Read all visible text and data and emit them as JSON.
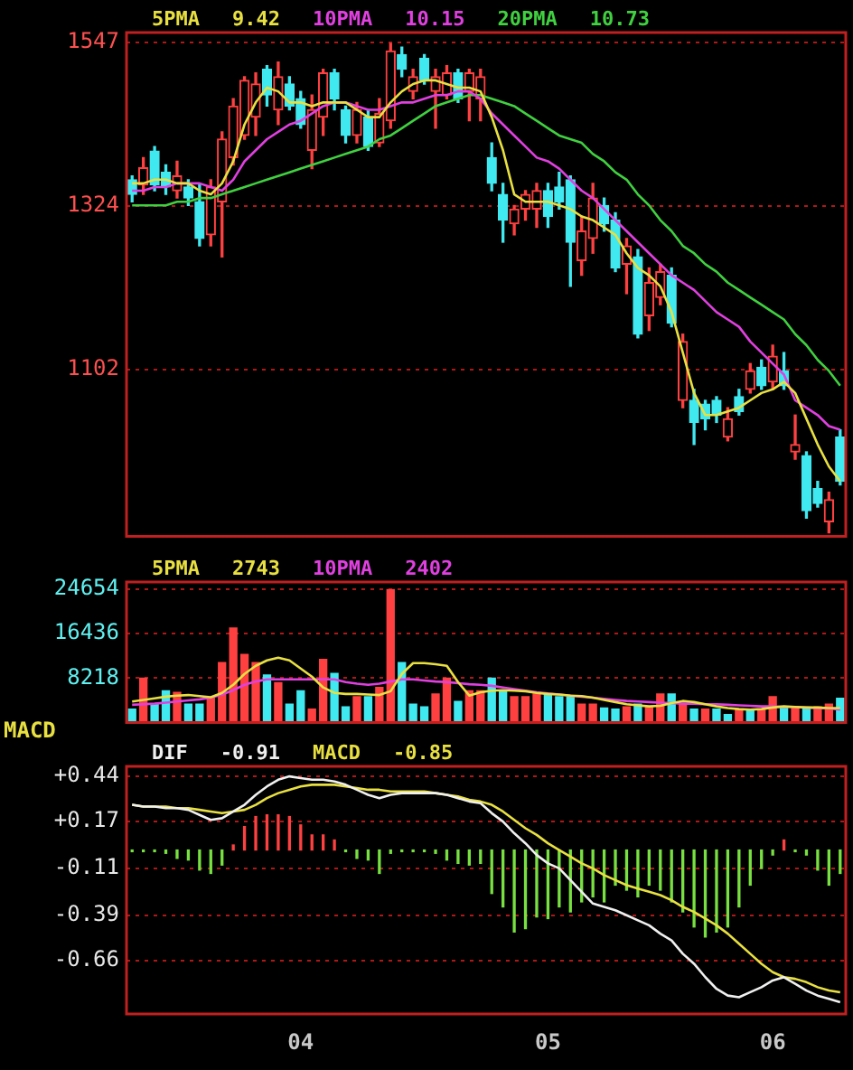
{
  "chart_data": [
    {
      "type": "candlestick",
      "categories": [
        null,
        null,
        null,
        null,
        null,
        null,
        null,
        null,
        null,
        null,
        null,
        null,
        null,
        null,
        null,
        "04",
        null,
        null,
        null,
        null,
        null,
        null,
        null,
        null,
        null,
        null,
        null,
        null,
        null,
        null,
        null,
        null,
        null,
        null,
        null,
        null,
        null,
        "05",
        null,
        null,
        null,
        null,
        null,
        null,
        null,
        null,
        null,
        null,
        null,
        null,
        null,
        null,
        null,
        null,
        null,
        null,
        null,
        "06",
        null,
        null,
        null,
        null,
        null,
        null
      ],
      "ohlc": [
        [
          1360,
          1365,
          1330,
          1340
        ],
        [
          1353,
          1390,
          1340,
          1376
        ],
        [
          1399,
          1405,
          1345,
          1353
        ],
        [
          1370,
          1380,
          1340,
          1350
        ],
        [
          1345,
          1385,
          1335,
          1365
        ],
        [
          1350,
          1360,
          1325,
          1335
        ],
        [
          1330,
          1355,
          1270,
          1280
        ],
        [
          1285,
          1360,
          1270,
          1350
        ],
        [
          1330,
          1425,
          1255,
          1415
        ],
        [
          1390,
          1470,
          1380,
          1460
        ],
        [
          1420,
          1500,
          1415,
          1495
        ],
        [
          1445,
          1505,
          1420,
          1490
        ],
        [
          1510,
          1515,
          1460,
          1475
        ],
        [
          1455,
          1520,
          1435,
          1500
        ],
        [
          1490,
          1500,
          1455,
          1460
        ],
        [
          1470,
          1480,
          1430,
          1435
        ],
        [
          1400,
          1475,
          1375,
          1455
        ],
        [
          1445,
          1510,
          1420,
          1505
        ],
        [
          1505,
          1510,
          1455,
          1470
        ],
        [
          1455,
          1460,
          1410,
          1420
        ],
        [
          1420,
          1465,
          1410,
          1455
        ],
        [
          1445,
          1455,
          1400,
          1405
        ],
        [
          1410,
          1470,
          1405,
          1450
        ],
        [
          1440,
          1545,
          1430,
          1535
        ],
        [
          1530,
          1540,
          1500,
          1510
        ],
        [
          1480,
          1510,
          1470,
          1500
        ],
        [
          1525,
          1530,
          1490,
          1495
        ],
        [
          1480,
          1510,
          1430,
          1500
        ],
        [
          1475,
          1515,
          1470,
          1505
        ],
        [
          1505,
          1510,
          1465,
          1470
        ],
        [
          1480,
          1510,
          1440,
          1505
        ],
        [
          1470,
          1510,
          1440,
          1500
        ],
        [
          1390,
          1410,
          1345,
          1355
        ],
        [
          1340,
          1355,
          1275,
          1305
        ],
        [
          1300,
          1325,
          1285,
          1320
        ],
        [
          1320,
          1345,
          1305,
          1340
        ],
        [
          1320,
          1355,
          1295,
          1345
        ],
        [
          1345,
          1355,
          1295,
          1310
        ],
        [
          1350,
          1370,
          1320,
          1330
        ],
        [
          1360,
          1365,
          1215,
          1275
        ],
        [
          1250,
          1310,
          1230,
          1290
        ],
        [
          1280,
          1355,
          1260,
          1335
        ],
        [
          1325,
          1335,
          1290,
          1300
        ],
        [
          1305,
          1315,
          1235,
          1240
        ],
        [
          1245,
          1280,
          1205,
          1270
        ],
        [
          1255,
          1265,
          1145,
          1150
        ],
        [
          1175,
          1240,
          1155,
          1220
        ],
        [
          1200,
          1245,
          1190,
          1235
        ],
        [
          1230,
          1240,
          1160,
          1165
        ],
        [
          1060,
          1150,
          1050,
          1140
        ],
        [
          1060,
          1075,
          1000,
          1030
        ],
        [
          1055,
          1060,
          1020,
          1035
        ],
        [
          1060,
          1065,
          1030,
          1040
        ],
        [
          1010,
          1050,
          1005,
          1035
        ],
        [
          1065,
          1075,
          1040,
          1045
        ],
        [
          1075,
          1110,
          1070,
          1100
        ],
        [
          1105,
          1115,
          1075,
          1080
        ],
        [
          1085,
          1135,
          1075,
          1120
        ],
        [
          1100,
          1125,
          1075,
          1080
        ],
        [
          990,
          1040,
          980,
          1000
        ],
        [
          985,
          990,
          900,
          910
        ],
        [
          940,
          950,
          915,
          920
        ],
        [
          895,
          935,
          880,
          925
        ],
        [
          1010,
          1020,
          945,
          950
        ]
      ],
      "colors": [
        "#40e8f0",
        "#ff4040",
        "#40e8f0",
        "#40e8f0",
        "#ff4040",
        "#40e8f0",
        "#40e8f0",
        "#ff4040",
        "#ff4040",
        "#ff4040",
        "#ff4040",
        "#ff4040",
        "#40e8f0",
        "#ff4040",
        "#40e8f0",
        "#40e8f0",
        "#ff4040",
        "#ff4040",
        "#40e8f0",
        "#40e8f0",
        "#ff4040",
        "#40e8f0",
        "#ff4040",
        "#ff4040",
        "#40e8f0",
        "#ff4040",
        "#40e8f0",
        "#ff4040",
        "#ff4040",
        "#40e8f0",
        "#ff4040",
        "#ff4040",
        "#40e8f0",
        "#40e8f0",
        "#ff4040",
        "#ff4040",
        "#ff4040",
        "#40e8f0",
        "#40e8f0",
        "#40e8f0",
        "#ff4040",
        "#ff4040",
        "#40e8f0",
        "#40e8f0",
        "#ff4040",
        "#40e8f0",
        "#ff4040",
        "#ff4040",
        "#40e8f0",
        "#ff4040",
        "#40e8f0",
        "#40e8f0",
        "#40e8f0",
        "#ff4040",
        "#40e8f0",
        "#ff4040",
        "#40e8f0",
        "#ff4040",
        "#40e8f0",
        "#ff4040",
        "#40e8f0",
        "#40e8f0",
        "#ff4040",
        "#40e8f0"
      ],
      "series": [
        {
          "name": "5PMA",
          "type": "line",
          "color": "#e8e040",
          "values": [
            1355,
            1355,
            1360,
            1360,
            1355,
            1355,
            1345,
            1340,
            1355,
            1385,
            1435,
            1465,
            1485,
            1480,
            1465,
            1465,
            1460,
            1465,
            1465,
            1465,
            1455,
            1445,
            1445,
            1465,
            1480,
            1490,
            1495,
            1495,
            1490,
            1485,
            1485,
            1480,
            1445,
            1400,
            1340,
            1330,
            1330,
            1330,
            1325,
            1320,
            1310,
            1305,
            1295,
            1285,
            1260,
            1240,
            1230,
            1215,
            1180,
            1125,
            1070,
            1040,
            1040,
            1045,
            1050,
            1060,
            1070,
            1075,
            1085,
            1070,
            1035,
            1000,
            970,
            950
          ]
        },
        {
          "name": "10PMA",
          "type": "line",
          "color": "#e040e0",
          "values": [
            1345,
            1345,
            1350,
            1350,
            1355,
            1355,
            1355,
            1350,
            1345,
            1360,
            1385,
            1400,
            1415,
            1425,
            1435,
            1440,
            1450,
            1460,
            1465,
            1465,
            1460,
            1455,
            1455,
            1460,
            1465,
            1465,
            1470,
            1475,
            1475,
            1480,
            1480,
            1470,
            1450,
            1435,
            1420,
            1405,
            1390,
            1385,
            1375,
            1360,
            1345,
            1335,
            1320,
            1305,
            1290,
            1275,
            1260,
            1245,
            1230,
            1220,
            1210,
            1195,
            1180,
            1170,
            1160,
            1140,
            1125,
            1110,
            1095,
            1060,
            1050,
            1040,
            1025,
            1020
          ]
        },
        {
          "name": "20PMA",
          "type": "line",
          "color": "#40d040",
          "values": [
            1325,
            1325,
            1325,
            1325,
            1330,
            1330,
            1335,
            1335,
            1340,
            1345,
            1350,
            1355,
            1360,
            1365,
            1370,
            1375,
            1380,
            1385,
            1390,
            1395,
            1400,
            1405,
            1415,
            1420,
            1430,
            1440,
            1450,
            1460,
            1465,
            1470,
            1475,
            1475,
            1470,
            1465,
            1460,
            1450,
            1440,
            1430,
            1420,
            1415,
            1410,
            1395,
            1385,
            1370,
            1360,
            1340,
            1325,
            1305,
            1290,
            1270,
            1260,
            1245,
            1235,
            1220,
            1210,
            1200,
            1190,
            1180,
            1170,
            1150,
            1135,
            1115,
            1100,
            1080
          ]
        }
      ],
      "annotations": [
        "9.42",
        "10.15",
        "10.73"
      ],
      "ylim": [
        875,
        1560
      ],
      "yticks": [
        1102,
        1324,
        1547
      ],
      "grid": "y",
      "legend": "top left",
      "marker": "none",
      "tick_labels": "y"
    },
    {
      "type": "bar",
      "categories": [
        null,
        null,
        null,
        null,
        null,
        null,
        null,
        null,
        null,
        null,
        null,
        null,
        null,
        null,
        null,
        "04",
        null,
        null,
        null,
        null,
        null,
        null,
        null,
        null,
        null,
        null,
        null,
        null,
        null,
        null,
        null,
        null,
        null,
        null,
        null,
        null,
        null,
        "05",
        null,
        null,
        null,
        null,
        null,
        null,
        null,
        null,
        null,
        null,
        null,
        null,
        null,
        null,
        null,
        null,
        null,
        null,
        null,
        "06",
        null,
        null,
        null,
        null,
        null,
        null
      ],
      "series": [
        {
          "values": [
            2500,
            8200,
            3400,
            5900,
            5600,
            3400,
            3400,
            4500,
            11100,
            17500,
            12600,
            11100,
            8800,
            7400,
            3400,
            5900,
            2500,
            11700,
            9100,
            2900,
            4800,
            4800,
            6500,
            24600,
            11100,
            3400,
            2900,
            5300,
            8200,
            3900,
            5900,
            5900,
            8200,
            5900,
            4800,
            4800,
            5300,
            5300,
            4800,
            4800,
            3400,
            3400,
            2700,
            2500,
            2900,
            3400,
            2900,
            5300,
            5300,
            3400,
            2500,
            2500,
            2500,
            1500,
            2500,
            2500,
            2500,
            4800,
            2700,
            2900,
            2500,
            2900,
            3400,
            4500
          ],
          "colors": [
            "#40e8f0",
            "#ff4040",
            "#40e8f0",
            "#40e8f0",
            "#ff4040",
            "#40e8f0",
            "#40e8f0",
            "#ff4040",
            "#ff4040",
            "#ff4040",
            "#ff4040",
            "#ff4040",
            "#40e8f0",
            "#ff4040",
            "#40e8f0",
            "#40e8f0",
            "#ff4040",
            "#ff4040",
            "#40e8f0",
            "#40e8f0",
            "#ff4040",
            "#40e8f0",
            "#ff4040",
            "#ff4040",
            "#40e8f0",
            "#40e8f0",
            "#40e8f0",
            "#ff4040",
            "#ff4040",
            "#40e8f0",
            "#ff4040",
            "#ff4040",
            "#40e8f0",
            "#40e8f0",
            "#ff4040",
            "#ff4040",
            "#ff4040",
            "#40e8f0",
            "#40e8f0",
            "#40e8f0",
            "#ff4040",
            "#ff4040",
            "#40e8f0",
            "#40e8f0",
            "#ff4040",
            "#40e8f0",
            "#ff4040",
            "#ff4040",
            "#40e8f0",
            "#ff4040",
            "#40e8f0",
            "#ff4040",
            "#40e8f0",
            "#40e8f0",
            "#ff4040",
            "#40e8f0",
            "#ff4040",
            "#ff4040",
            "#40e8f0",
            "#ff4040",
            "#40e8f0",
            "#ff4040",
            "#ff4040",
            "#40e8f0"
          ]
        },
        {
          "name": "5PMA",
          "type": "line",
          "color": "#e8e040",
          "values": [
            3900,
            4200,
            4500,
            4800,
            5000,
            5100,
            4900,
            4700,
            5500,
            7000,
            9000,
            10500,
            11500,
            12000,
            11500,
            10000,
            8500,
            6500,
            5500,
            5300,
            5300,
            5200,
            5100,
            5800,
            9000,
            11000,
            11000,
            10800,
            10500,
            7500,
            5000,
            5600,
            5900,
            6000,
            5900,
            5800,
            5500,
            5300,
            5200,
            5000,
            4900,
            4600,
            4200,
            3800,
            3400,
            3200,
            3000,
            3100,
            3600,
            4000,
            3800,
            3400,
            3000,
            2700,
            2500,
            2400,
            2500,
            2800,
            3000,
            2900,
            2800,
            2800,
            2700,
            2700
          ]
        },
        {
          "name": "10PMA",
          "type": "line",
          "color": "#e040e0",
          "values": [
            3300,
            3400,
            3500,
            3700,
            3900,
            4100,
            4300,
            4600,
            5200,
            6000,
            7000,
            7600,
            8000,
            8000,
            8000,
            8000,
            8000,
            8000,
            8000,
            7500,
            7200,
            7000,
            7200,
            7600,
            8000,
            8000,
            7800,
            7600,
            7500,
            7300,
            7100,
            7000,
            6800,
            6500,
            6200,
            5900,
            5600,
            5400,
            5200,
            5000,
            4800,
            4600,
            4400,
            4200,
            4000,
            3900,
            3800,
            3700,
            3600,
            3500,
            3500,
            3400,
            3400,
            3300,
            3200,
            3100,
            3000,
            3000,
            2900,
            2900,
            2800,
            2700,
            2600,
            2400
          ]
        }
      ],
      "annotations": [
        "2743",
        "2402"
      ],
      "ylim": [
        0,
        26000
      ],
      "yticks": [
        8218,
        16436,
        24654
      ],
      "grid": "y",
      "legend": "top left",
      "marker": "none",
      "tick_labels": "y"
    },
    {
      "type": "bar",
      "title": "MACD",
      "categories": [
        null,
        null,
        null,
        null,
        null,
        null,
        null,
        null,
        null,
        null,
        null,
        null,
        null,
        null,
        null,
        "04",
        null,
        null,
        null,
        null,
        null,
        null,
        null,
        null,
        null,
        null,
        null,
        null,
        null,
        null,
        null,
        null,
        null,
        null,
        null,
        null,
        null,
        "05",
        null,
        null,
        null,
        null,
        null,
        null,
        null,
        null,
        null,
        null,
        null,
        null,
        null,
        null,
        null,
        null,
        null,
        null,
        null,
        "06",
        null,
        null,
        null,
        null,
        null,
        null
      ],
      "series": [
        {
          "values": [
            -0.01,
            -0.01,
            -0.01,
            -0.02,
            -0.05,
            -0.06,
            -0.12,
            -0.14,
            -0.09,
            0.03,
            0.14,
            0.2,
            0.21,
            0.21,
            0.2,
            0.15,
            0.09,
            0.09,
            0.06,
            -0.01,
            -0.05,
            -0.06,
            -0.14,
            -0.02,
            -0.01,
            -0.01,
            -0.01,
            -0.02,
            -0.06,
            -0.08,
            -0.09,
            -0.08,
            -0.26,
            -0.34,
            -0.49,
            -0.47,
            -0.4,
            -0.41,
            -0.34,
            -0.37,
            -0.31,
            -0.28,
            -0.31,
            -0.21,
            -0.24,
            -0.28,
            -0.21,
            -0.24,
            -0.31,
            -0.37,
            -0.46,
            -0.52,
            -0.49,
            -0.46,
            -0.34,
            -0.21,
            -0.11,
            -0.03,
            0.06,
            -0.01,
            -0.03,
            -0.12,
            -0.21,
            -0.14
          ],
          "colors": [
            "#78e040",
            "#78e040",
            "#78e040",
            "#78e040",
            "#78e040",
            "#78e040",
            "#78e040",
            "#78e040",
            "#78e040",
            "#ff4040",
            "#ff4040",
            "#ff4040",
            "#ff4040",
            "#ff4040",
            "#ff4040",
            "#ff4040",
            "#ff4040",
            "#ff4040",
            "#ff4040",
            "#78e040",
            "#78e040",
            "#78e040",
            "#78e040",
            "#78e040",
            "#78e040",
            "#78e040",
            "#78e040",
            "#78e040",
            "#78e040",
            "#78e040",
            "#78e040",
            "#78e040",
            "#78e040",
            "#78e040",
            "#78e040",
            "#78e040",
            "#78e040",
            "#78e040",
            "#78e040",
            "#78e040",
            "#78e040",
            "#78e040",
            "#78e040",
            "#78e040",
            "#78e040",
            "#78e040",
            "#78e040",
            "#78e040",
            "#78e040",
            "#78e040",
            "#78e040",
            "#78e040",
            "#78e040",
            "#78e040",
            "#78e040",
            "#78e040",
            "#78e040",
            "#78e040",
            "#ff4040",
            "#78e040",
            "#78e040",
            "#78e040",
            "#78e040",
            "#78e040"
          ]
        },
        {
          "name": "DIF",
          "type": "line",
          "color": "#f0f0f0",
          "values": [
            0.27,
            0.26,
            0.26,
            0.25,
            0.25,
            0.24,
            0.21,
            0.18,
            0.19,
            0.23,
            0.27,
            0.33,
            0.38,
            0.42,
            0.44,
            0.43,
            0.42,
            0.42,
            0.41,
            0.39,
            0.36,
            0.33,
            0.31,
            0.33,
            0.34,
            0.34,
            0.34,
            0.34,
            0.33,
            0.31,
            0.29,
            0.28,
            0.22,
            0.17,
            0.1,
            0.04,
            -0.03,
            -0.08,
            -0.11,
            -0.18,
            -0.25,
            -0.32,
            -0.34,
            -0.36,
            -0.39,
            -0.42,
            -0.45,
            -0.5,
            -0.54,
            -0.62,
            -0.68,
            -0.76,
            -0.83,
            -0.87,
            -0.88,
            -0.85,
            -0.82,
            -0.78,
            -0.76,
            -0.8,
            -0.84,
            -0.87,
            -0.89,
            -0.91
          ]
        },
        {
          "name": "MACD",
          "type": "line",
          "color": "#e8e040",
          "values": [
            0.27,
            0.26,
            0.26,
            0.26,
            0.25,
            0.25,
            0.24,
            0.23,
            0.22,
            0.23,
            0.24,
            0.27,
            0.31,
            0.34,
            0.36,
            0.38,
            0.39,
            0.39,
            0.39,
            0.38,
            0.37,
            0.36,
            0.36,
            0.35,
            0.35,
            0.35,
            0.35,
            0.34,
            0.33,
            0.32,
            0.3,
            0.29,
            0.27,
            0.23,
            0.18,
            0.13,
            0.09,
            0.04,
            0.0,
            -0.04,
            -0.08,
            -0.11,
            -0.15,
            -0.18,
            -0.21,
            -0.23,
            -0.25,
            -0.27,
            -0.3,
            -0.34,
            -0.37,
            -0.41,
            -0.45,
            -0.5,
            -0.56,
            -0.62,
            -0.68,
            -0.73,
            -0.76,
            -0.77,
            -0.79,
            -0.82,
            -0.84,
            -0.85
          ]
        }
      ],
      "annotations": [
        "-0.91",
        "-0.85"
      ],
      "ylim": [
        -0.98,
        0.5
      ],
      "yticks": [
        {
          "value": 0.44,
          "label": "+0.44"
        },
        {
          "value": 0.17,
          "label": "+0.17"
        },
        -0.11,
        -0.39,
        -0.66
      ],
      "grid": "y",
      "legend": "top left",
      "marker": "none"
    }
  ]
}
